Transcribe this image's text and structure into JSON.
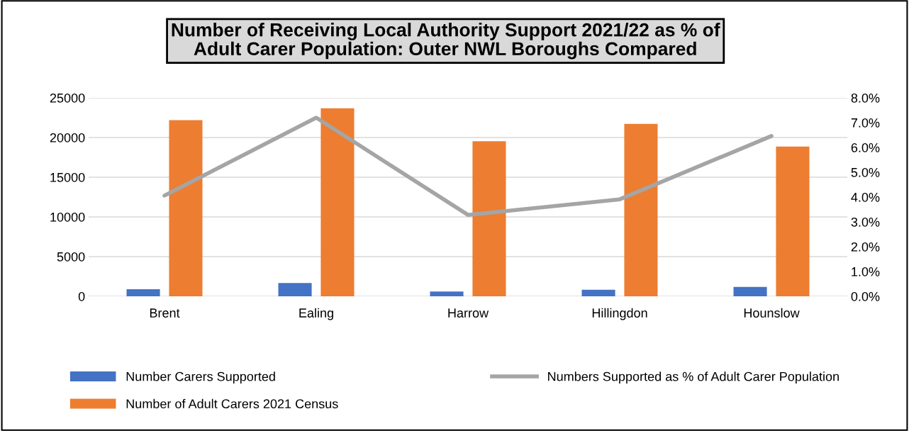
{
  "chart_data": {
    "type": "bar",
    "title": "Number of Receiving Local Authority Support 2021/22 as % of\nAdult Carer Population: Outer NWL Boroughs Compared",
    "categories": [
      "Brent",
      "Ealing",
      "Harrow",
      "Hillingdon",
      "Hounslow"
    ],
    "series": [
      {
        "name": "Number Carers Supported",
        "color": "#4472c4",
        "values": [
          890,
          1680,
          610,
          820,
          1180
        ]
      },
      {
        "name": "Number of Adult Carers 2021 Census",
        "color": "#ed7d31",
        "values": [
          22180,
          23680,
          19540,
          21710,
          18860
        ]
      },
      {
        "name": "Numbers Supported as % of Adult Carer Population",
        "color": "#a5a5a5",
        "type": "line",
        "axis": "y2",
        "values": [
          4.06,
          7.2,
          3.28,
          3.91,
          6.46
        ]
      }
    ],
    "ylim": [
      0,
      25000
    ],
    "yticks": [
      0,
      5000,
      10000,
      15000,
      20000,
      25000
    ],
    "y2lim": [
      0,
      8
    ],
    "y2ticks": [
      {
        "value": 0,
        "label": "0.0%"
      },
      {
        "value": 1,
        "label": "1.0%"
      },
      {
        "value": 2,
        "label": "2.0%"
      },
      {
        "value": 3,
        "label": "3.0%"
      },
      {
        "value": 4,
        "label": "4.0%"
      },
      {
        "value": 5,
        "label": "5.0%"
      },
      {
        "value": 6,
        "label": "6.0%"
      },
      {
        "value": 7,
        "label": "7.0%"
      },
      {
        "value": 8,
        "label": "8.0%"
      }
    ],
    "grid": "y",
    "legend": "bottom",
    "marker": "none",
    "line_style": "solid"
  }
}
